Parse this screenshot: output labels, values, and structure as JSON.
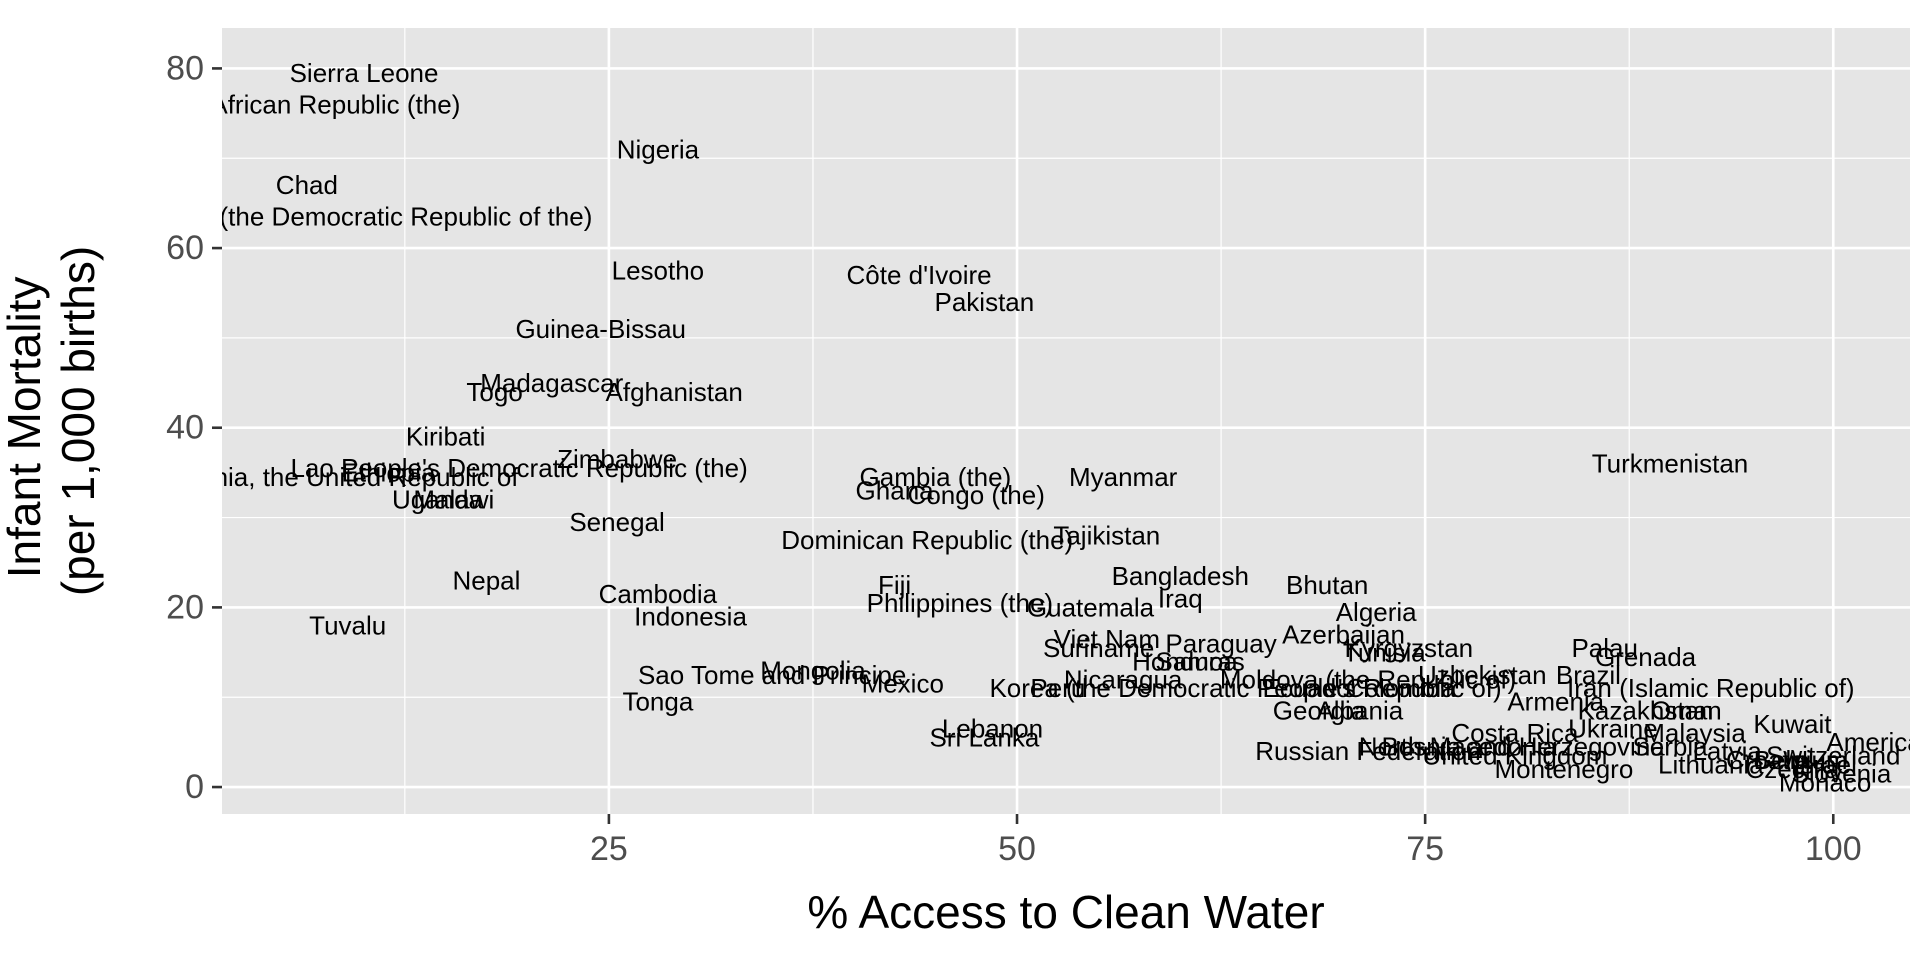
{
  "chart_data": {
    "type": "scatter",
    "mark": "text",
    "xlabel": "% Access to Clean Water",
    "ylabel_lines": [
      "Infant Mortality",
      "(per 1,000 births)"
    ],
    "xlim": [
      1.3,
      104.7
    ],
    "ylim": [
      -3.0,
      84.5
    ],
    "x_ticks": [
      25,
      50,
      75,
      100
    ],
    "y_ticks": [
      0,
      20,
      40,
      60,
      80
    ],
    "x_minor": [
      12.5,
      37.5,
      62.5,
      87.5
    ],
    "y_minor": [
      10,
      30,
      50,
      70
    ],
    "grid": true,
    "colors": {
      "panel": "#e5e5e5",
      "grid": "#ffffff",
      "text": "#000000",
      "tick_text": "#4d4d4d",
      "tick": "#333333",
      "background": "#ffffff"
    },
    "points": [
      {
        "label": "Sierra Leone",
        "x": 10.0,
        "y": 79.5
      },
      {
        "label": "Central African Republic (the)",
        "x": 5.5,
        "y": 76.0
      },
      {
        "label": "Nigeria",
        "x": 28.0,
        "y": 71.0
      },
      {
        "label": "Chad",
        "x": 6.5,
        "y": 67.0
      },
      {
        "label": "Congo (the Democratic Republic of the)",
        "x": 10.0,
        "y": 63.5
      },
      {
        "label": "Lesotho",
        "x": 28.0,
        "y": 57.5
      },
      {
        "label": "Côte d'Ivoire",
        "x": 44.0,
        "y": 57.0
      },
      {
        "label": "Pakistan",
        "x": 48.0,
        "y": 54.0
      },
      {
        "label": "Guinea-Bissau",
        "x": 24.5,
        "y": 51.0
      },
      {
        "label": "Madagascar",
        "x": 21.5,
        "y": 45.0
      },
      {
        "label": "Togo",
        "x": 18.0,
        "y": 44.0
      },
      {
        "label": "Afghanistan",
        "x": 29.0,
        "y": 44.0
      },
      {
        "label": "Kiribati",
        "x": 15.0,
        "y": 39.0
      },
      {
        "label": "Lao People's Democratic Republic (the)",
        "x": 19.5,
        "y": 35.5
      },
      {
        "label": "Zimbabwe",
        "x": 25.5,
        "y": 36.5
      },
      {
        "label": "Ethiopia",
        "x": 11.5,
        "y": 35.0
      },
      {
        "label": "Tanzania, the United Republic of",
        "x": 8.0,
        "y": 34.5
      },
      {
        "label": "Malawi",
        "x": 15.5,
        "y": 32.0
      },
      {
        "label": "Uganda",
        "x": 14.5,
        "y": 32.0
      },
      {
        "label": "Senegal",
        "x": 25.5,
        "y": 29.5
      },
      {
        "label": "Gambia (the)",
        "x": 45.0,
        "y": 34.5
      },
      {
        "label": "Myanmar",
        "x": 56.5,
        "y": 34.5
      },
      {
        "label": "Ghana",
        "x": 42.5,
        "y": 33.0
      },
      {
        "label": "Congo (the)",
        "x": 47.5,
        "y": 32.5
      },
      {
        "label": "Turkmenistan",
        "x": 90.0,
        "y": 36.0
      },
      {
        "label": "Dominican Republic (the)",
        "x": 44.5,
        "y": 27.5
      },
      {
        "label": "Tajikistan",
        "x": 55.5,
        "y": 28.0
      },
      {
        "label": "Nepal",
        "x": 17.5,
        "y": 23.0
      },
      {
        "label": "Cambodia",
        "x": 28.0,
        "y": 21.5
      },
      {
        "label": "Fiji",
        "x": 42.5,
        "y": 22.5
      },
      {
        "label": "Bangladesh",
        "x": 60.0,
        "y": 23.5
      },
      {
        "label": "Bhutan",
        "x": 69.0,
        "y": 22.5
      },
      {
        "label": "Indonesia",
        "x": 30.0,
        "y": 19.0
      },
      {
        "label": "Tuvalu",
        "x": 9.0,
        "y": 18.0
      },
      {
        "label": "Philippines (the)",
        "x": 46.5,
        "y": 20.5
      },
      {
        "label": "Guatemala",
        "x": 54.5,
        "y": 20.0
      },
      {
        "label": "Iraq",
        "x": 60.0,
        "y": 21.0
      },
      {
        "label": "Algeria",
        "x": 72.0,
        "y": 19.5
      },
      {
        "label": "Azerbaijan",
        "x": 70.0,
        "y": 17.0
      },
      {
        "label": "Viet Nam",
        "x": 55.5,
        "y": 16.5
      },
      {
        "label": "Suriname",
        "x": 55.0,
        "y": 15.5
      },
      {
        "label": "Paraguay",
        "x": 62.5,
        "y": 16.0
      },
      {
        "label": "Kyrgyzstan",
        "x": 74.0,
        "y": 15.5
      },
      {
        "label": "Honduras",
        "x": 60.5,
        "y": 14.0
      },
      {
        "label": "Samoa",
        "x": 61.0,
        "y": 14.0
      },
      {
        "label": "Tunisia",
        "x": 72.5,
        "y": 15.0
      },
      {
        "label": "Palau",
        "x": 86.0,
        "y": 15.5
      },
      {
        "label": "Grenada",
        "x": 88.5,
        "y": 14.5
      },
      {
        "label": "Sao Tome and Principe",
        "x": 35.0,
        "y": 12.5
      },
      {
        "label": "Mongolia",
        "x": 37.5,
        "y": 13.0
      },
      {
        "label": "Mexico",
        "x": 43.0,
        "y": 11.5
      },
      {
        "label": "Korea (the Democratic People's Republic of)",
        "x": 64.0,
        "y": 11.0
      },
      {
        "label": "Peru",
        "x": 52.5,
        "y": 11.0
      },
      {
        "label": "Nicaragua",
        "x": 56.5,
        "y": 12.0
      },
      {
        "label": "Moldova (the Republic of)",
        "x": 71.5,
        "y": 12.0
      },
      {
        "label": "Ecuador",
        "x": 68.0,
        "y": 11.0
      },
      {
        "label": "Colombia",
        "x": 73.5,
        "y": 11.0
      },
      {
        "label": "Uzbekistan",
        "x": 78.5,
        "y": 12.5
      },
      {
        "label": "Brazil",
        "x": 85.0,
        "y": 12.5
      },
      {
        "label": "Iran (Islamic Republic of)",
        "x": 92.5,
        "y": 11.0
      },
      {
        "label": "Armenia",
        "x": 83.0,
        "y": 9.5
      },
      {
        "label": "Kazakhstan",
        "x": 88.5,
        "y": 8.5
      },
      {
        "label": "Oman",
        "x": 91.0,
        "y": 8.5
      },
      {
        "label": "Tonga",
        "x": 28.0,
        "y": 9.5
      },
      {
        "label": "Georgia",
        "x": 68.5,
        "y": 8.5
      },
      {
        "label": "Albania",
        "x": 71.0,
        "y": 8.5
      },
      {
        "label": "Costa Rica",
        "x": 80.5,
        "y": 6.0
      },
      {
        "label": "Ukraine",
        "x": 86.5,
        "y": 6.5
      },
      {
        "label": "Malaysia",
        "x": 91.5,
        "y": 6.0
      },
      {
        "label": "Kuwait",
        "x": 97.5,
        "y": 7.0
      },
      {
        "label": "Lebanon",
        "x": 48.5,
        "y": 6.5
      },
      {
        "label": "Sri Lanka",
        "x": 48.0,
        "y": 5.5
      },
      {
        "label": "Russian Federation",
        "x": 71.5,
        "y": 4.0
      },
      {
        "label": "North Macedonia",
        "x": 77.0,
        "y": 4.5
      },
      {
        "label": "Bosnia and Herzegovina",
        "x": 81.0,
        "y": 4.5
      },
      {
        "label": "United Kingdom",
        "x": 80.5,
        "y": 3.5
      },
      {
        "label": "Serbia",
        "x": 90.0,
        "y": 4.5
      },
      {
        "label": "Latvia",
        "x": 93.5,
        "y": 4.0
      },
      {
        "label": "Montenegro",
        "x": 83.5,
        "y": 2.0
      },
      {
        "label": "Lithuania",
        "x": 92.5,
        "y": 2.5
      },
      {
        "label": "Croatia",
        "x": 96.0,
        "y": 3.0
      },
      {
        "label": "Czechia",
        "x": 97.5,
        "y": 2.0
      },
      {
        "label": "Belgium",
        "x": 98.0,
        "y": 3.0
      },
      {
        "label": "Israel",
        "x": 99.5,
        "y": 2.5
      },
      {
        "label": "Switzerland",
        "x": 100.0,
        "y": 3.5
      },
      {
        "label": "Slovenia",
        "x": 100.5,
        "y": 1.5
      },
      {
        "label": "America",
        "x": 102.5,
        "y": 5.0
      },
      {
        "label": "Monaco",
        "x": 99.5,
        "y": 0.5
      }
    ]
  }
}
